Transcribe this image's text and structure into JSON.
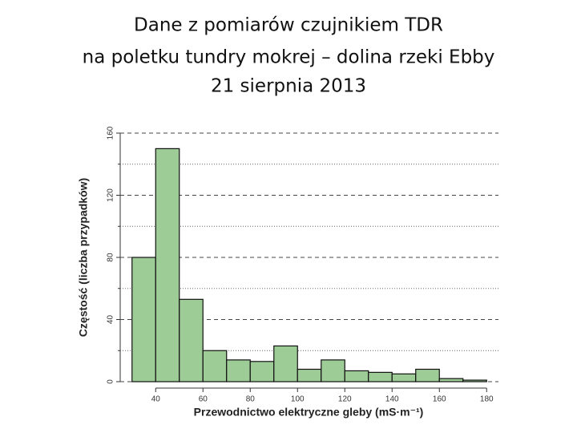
{
  "chart_data": {
    "type": "histogram",
    "title": [
      "Dane z pomiarów czujnikiem TDR",
      "na poletku tundry mokrej – dolina rzeki Ebby",
      "21 sierpnia 2013"
    ],
    "xlabel": "Przewodnictwo elektryczne gleby (mS·m⁻¹)",
    "ylabel": "Częstość (liczba przypadków)",
    "bins": [
      30,
      40,
      50,
      60,
      70,
      80,
      90,
      100,
      110,
      120,
      130,
      140,
      150,
      160,
      170,
      180
    ],
    "values": [
      80,
      150,
      53,
      20,
      14,
      13,
      23,
      8,
      14,
      7,
      6,
      5,
      8,
      2,
      1
    ],
    "color": "#9dcc97",
    "xlim": [
      25,
      185
    ],
    "ylim": [
      0,
      160
    ],
    "xticks": [
      40,
      60,
      80,
      100,
      120,
      140,
      160,
      180
    ],
    "yticks": [
      0,
      40,
      80,
      120,
      160
    ],
    "minor_yticks": [
      20,
      60,
      100,
      140
    ],
    "grid": true
  }
}
